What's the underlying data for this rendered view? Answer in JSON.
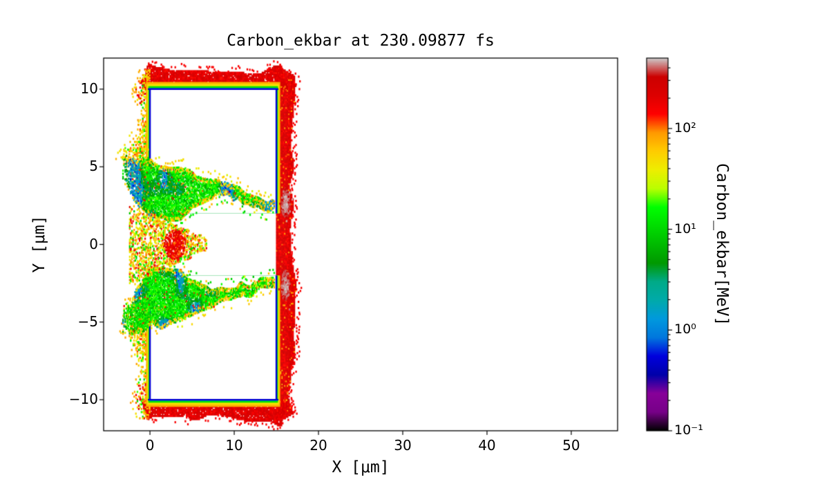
{
  "chart_data": {
    "type": "heatmap",
    "title": "Carbon_ekbar at 230.09877 fs",
    "xlabel": "X [μm]",
    "ylabel": "Y [μm]",
    "xlim": [
      -5.5,
      55.5
    ],
    "ylim": [
      -12,
      12
    ],
    "xticks": [
      0,
      10,
      20,
      30,
      40,
      50
    ],
    "yticks": [
      -10,
      -5,
      0,
      5,
      10
    ],
    "grid": false,
    "background": "#ffffff",
    "colorbar": {
      "label": "Carbon_ekbar[MeV]",
      "scale": "log",
      "vmin": 0.1,
      "vmax": 500,
      "major_ticks": [
        {
          "value": 100,
          "label": "10²"
        },
        {
          "value": 10,
          "label": "10¹"
        },
        {
          "value": 1,
          "label": "10⁰"
        },
        {
          "value": 0.1,
          "label": "10⁻¹"
        }
      ],
      "colormap": "nipy_spectral",
      "colormap_stops": [
        [
          0.0,
          "#000000"
        ],
        [
          0.05,
          "#770088"
        ],
        [
          0.1,
          "#880099"
        ],
        [
          0.15,
          "#0000AA"
        ],
        [
          0.2,
          "#0000DD"
        ],
        [
          0.25,
          "#0077DD"
        ],
        [
          0.3,
          "#0099DD"
        ],
        [
          0.35,
          "#00AAAA"
        ],
        [
          0.4,
          "#00AA88"
        ],
        [
          0.45,
          "#009900"
        ],
        [
          0.5,
          "#00BB00"
        ],
        [
          0.55,
          "#00DD00"
        ],
        [
          0.6,
          "#00FF00"
        ],
        [
          0.65,
          "#BBFF00"
        ],
        [
          0.7,
          "#EEEE00"
        ],
        [
          0.75,
          "#FFCC00"
        ],
        [
          0.8,
          "#FF9900"
        ],
        [
          0.85,
          "#FF0000"
        ],
        [
          0.9,
          "#DD0000"
        ],
        [
          0.95,
          "#CC0000"
        ],
        [
          1.0,
          "#CCCCCC"
        ]
      ]
    },
    "scene": {
      "description": "Laser-irradiated carbon foil: two slab halves (channel bored along y=0), cold dense surfaces (blue ~0.5 MeV) wrapped by hot expanding sheath (red >100 MeV), turbulent channel-wall jets (green ~1-20 MeV), and near-max hotspots (gray ~450 MeV) at the rear surface",
      "blocks": [
        {
          "name": "upper-slab",
          "x": [
            0,
            15
          ],
          "y": [
            2,
            10
          ],
          "open_side": "bottom"
        },
        {
          "name": "lower-slab",
          "x": [
            0,
            15
          ],
          "y": [
            -10,
            -2
          ],
          "open_side": "top"
        }
      ],
      "surface_layers": [
        {
          "value_mev": 0.5,
          "offset": 0
        },
        {
          "value_mev": 2.5,
          "offset": 0.09
        },
        {
          "value_mev": 12,
          "offset": 0.19
        },
        {
          "value_mev": 45,
          "offset": 0.32
        },
        {
          "value_mev": 75,
          "offset": 0.46
        }
      ],
      "hot_sheath": {
        "value_range_mev": [
          130,
          300
        ],
        "right_extent": [
          15.05,
          17.3
        ],
        "cap_thickness": [
          1.0,
          1.6
        ]
      },
      "jets": [
        {
          "name": "upper-channel-wall-jet",
          "x": [
            -3.2,
            14.7
          ],
          "root": [
            0.5,
            5.7
          ],
          "tip": [
            14.7,
            2.9
          ],
          "value_range_mev": [
            0.5,
            90
          ]
        },
        {
          "name": "lower-channel-wall-jet",
          "x": [
            -3.2,
            14.7
          ],
          "root": [
            0.5,
            -5.7
          ],
          "tip": [
            14.7,
            -2.9
          ],
          "value_range_mev": [
            0.5,
            90
          ]
        }
      ],
      "channel_mouth": {
        "x": [
          -2.4,
          6.8
        ],
        "y": [
          -2.2,
          2.2
        ],
        "value_range_mev": [
          25,
          250
        ]
      },
      "left_plumes": [
        {
          "y": [
            3.0,
            7.8
          ],
          "max_extent_x": -3.4,
          "value_range_mev": [
            25,
            120
          ]
        },
        {
          "y": [
            -7.8,
            -3.0
          ],
          "max_extent_x": -3.4,
          "value_range_mev": [
            25,
            120
          ]
        },
        {
          "y": [
            8.6,
            11.2
          ],
          "max_extent_x": -2.0,
          "value_range_mev": [
            60,
            220
          ]
        },
        {
          "y": [
            -11.2,
            -8.6
          ],
          "max_extent_x": -2.0,
          "value_range_mev": [
            60,
            220
          ]
        }
      ],
      "hotspots": [
        {
          "x": 16.1,
          "y": 2.65,
          "value_mev": 450
        },
        {
          "x": 16.1,
          "y": -2.65,
          "value_mev": 450
        }
      ]
    }
  }
}
